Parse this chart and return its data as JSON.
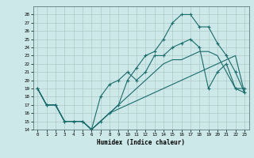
{
  "xlabel": "Humidex (Indice chaleur)",
  "bg_color": "#cce8e8",
  "grid_color": "#b0c8c8",
  "line_color": "#1a6b6b",
  "xlim": [
    -0.5,
    23.5
  ],
  "ylim": [
    14,
    29
  ],
  "yticks": [
    14,
    15,
    16,
    17,
    18,
    19,
    20,
    21,
    22,
    23,
    24,
    25,
    26,
    27,
    28
  ],
  "xticks": [
    0,
    1,
    2,
    3,
    4,
    5,
    6,
    7,
    8,
    9,
    10,
    11,
    12,
    13,
    14,
    15,
    16,
    17,
    18,
    19,
    20,
    21,
    22,
    23
  ],
  "series": [
    {
      "x": [
        0,
        1,
        2,
        3,
        4,
        5,
        6,
        7,
        8,
        9,
        10,
        11,
        12,
        13,
        14,
        15,
        16,
        17,
        18,
        19,
        20,
        21,
        22,
        23
      ],
      "y": [
        19,
        17,
        17,
        15,
        15,
        15,
        14,
        15,
        16,
        16.5,
        17,
        17.5,
        18,
        18.5,
        19,
        19.5,
        20,
        20.5,
        21,
        21.5,
        22,
        22.5,
        23,
        18.5
      ],
      "has_markers": false
    },
    {
      "x": [
        0,
        1,
        2,
        3,
        4,
        5,
        6,
        7,
        8,
        9,
        10,
        11,
        12,
        13,
        14,
        15,
        16,
        17,
        18,
        19,
        20,
        21,
        22,
        23
      ],
      "y": [
        19,
        17,
        17,
        15,
        15,
        15,
        14,
        15,
        16,
        17,
        18,
        19,
        20,
        21,
        22,
        22.5,
        22.5,
        23,
        23.5,
        23.5,
        23,
        21,
        19,
        18.5
      ],
      "has_markers": false
    },
    {
      "x": [
        0,
        1,
        2,
        3,
        4,
        5,
        6,
        7,
        8,
        9,
        10,
        11,
        12,
        13,
        14,
        15,
        16,
        17,
        18,
        19,
        20,
        21,
        22,
        23
      ],
      "y": [
        19,
        17,
        17,
        15,
        15,
        15,
        14,
        18,
        19.5,
        20,
        21,
        20,
        21,
        23,
        23,
        24,
        24.5,
        25,
        24,
        19,
        21,
        22,
        19,
        19
      ],
      "has_markers": true
    },
    {
      "x": [
        0,
        1,
        2,
        3,
        4,
        5,
        6,
        7,
        8,
        9,
        10,
        11,
        12,
        13,
        14,
        15,
        16,
        17,
        18,
        19,
        20,
        21,
        22,
        23
      ],
      "y": [
        19,
        17,
        17,
        15,
        15,
        15,
        14,
        15,
        16,
        17,
        20,
        21.5,
        23,
        23.5,
        25,
        27,
        28,
        28,
        26.5,
        26.5,
        24.5,
        23,
        21,
        18.5
      ],
      "has_markers": true
    }
  ]
}
